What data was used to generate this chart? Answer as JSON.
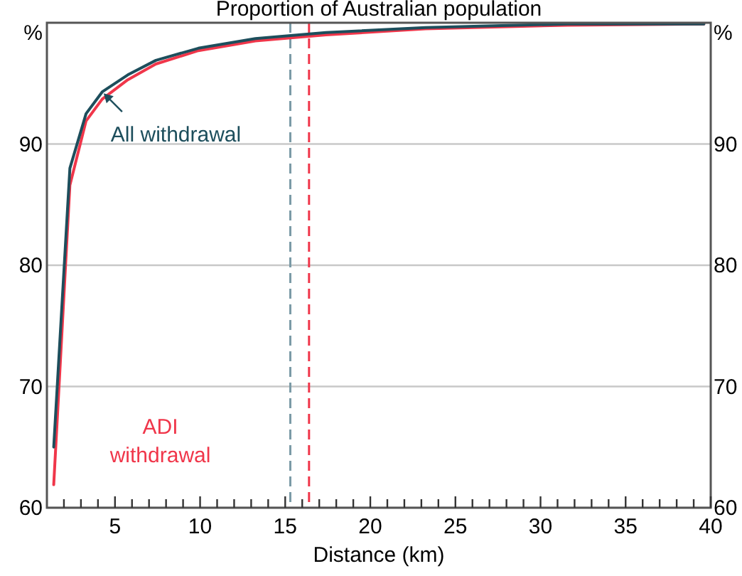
{
  "chart_data": {
    "type": "line",
    "title": "Proportion of Australian population",
    "xlabel": "Distance (km)",
    "ylabel": "%",
    "y2label": "%",
    "xlim": [
      1,
      40
    ],
    "xticks": [
      {
        "value": 2,
        "label": null
      },
      {
        "value": 3,
        "label": null
      },
      {
        "value": 4,
        "label": null
      },
      5,
      {
        "value": 6,
        "label": null
      },
      {
        "value": 7,
        "label": null
      },
      {
        "value": 8,
        "label": null
      },
      {
        "value": 9,
        "label": null
      },
      10,
      {
        "value": 11,
        "label": null
      },
      {
        "value": 12,
        "label": null
      },
      {
        "value": 13,
        "label": null
      },
      {
        "value": 14,
        "label": null
      },
      15,
      {
        "value": 16,
        "label": null
      },
      {
        "value": 17,
        "label": null
      },
      {
        "value": 18,
        "label": null
      },
      {
        "value": 19,
        "label": null
      },
      20,
      {
        "value": 21,
        "label": null
      },
      {
        "value": 22,
        "label": null
      },
      {
        "value": 23,
        "label": null
      },
      {
        "value": 24,
        "label": null
      },
      25,
      {
        "value": 26,
        "label": null
      },
      {
        "value": 27,
        "label": null
      },
      {
        "value": 28,
        "label": null
      },
      {
        "value": 29,
        "label": null
      },
      30,
      {
        "value": 31,
        "label": null
      },
      {
        "value": 32,
        "label": null
      },
      {
        "value": 33,
        "label": null
      },
      {
        "value": 34,
        "label": null
      },
      35,
      {
        "value": 36,
        "label": null
      },
      {
        "value": 37,
        "label": null
      },
      {
        "value": 38,
        "label": null
      },
      {
        "value": 39,
        "label": null
      },
      40
    ],
    "ylim": [
      60,
      100
    ],
    "yticks": [
      60,
      70,
      80,
      90
    ],
    "y2lim": [
      60,
      100
    ],
    "y2ticks": [
      60,
      70,
      80,
      90
    ],
    "grid": "y",
    "line_style": "solid",
    "series": [
      {
        "name": "ADI withdrawal",
        "color": "#f0364a",
        "x": [
          1.4,
          2.35,
          3.3,
          4.25,
          5.75,
          7.4,
          9.9,
          13.25,
          17.4,
          23.25,
          31.6,
          39.6
        ],
        "values": [
          61.9,
          86.6,
          91.9,
          93.7,
          95.3,
          96.6,
          97.7,
          98.5,
          99.0,
          99.5,
          99.8,
          99.9
        ]
      },
      {
        "name": "All withdrawal",
        "color": "#1d4e5c",
        "x": [
          1.4,
          2.35,
          3.3,
          4.25,
          5.75,
          7.4,
          9.9,
          13.25,
          17.4,
          23.25,
          31.6,
          39.6
        ],
        "values": [
          65,
          88,
          92.5,
          94.3,
          95.7,
          96.9,
          97.9,
          98.7,
          99.2,
          99.6,
          99.9,
          99.9
        ]
      }
    ],
    "ref_lines": [
      {
        "axis": "x",
        "value": 15.3,
        "color": "#7a9aa6",
        "line_style": "dashed"
      },
      {
        "axis": "x",
        "value": 16.4,
        "color": "#f0364a",
        "line_style": "dashed"
      }
    ]
  }
}
